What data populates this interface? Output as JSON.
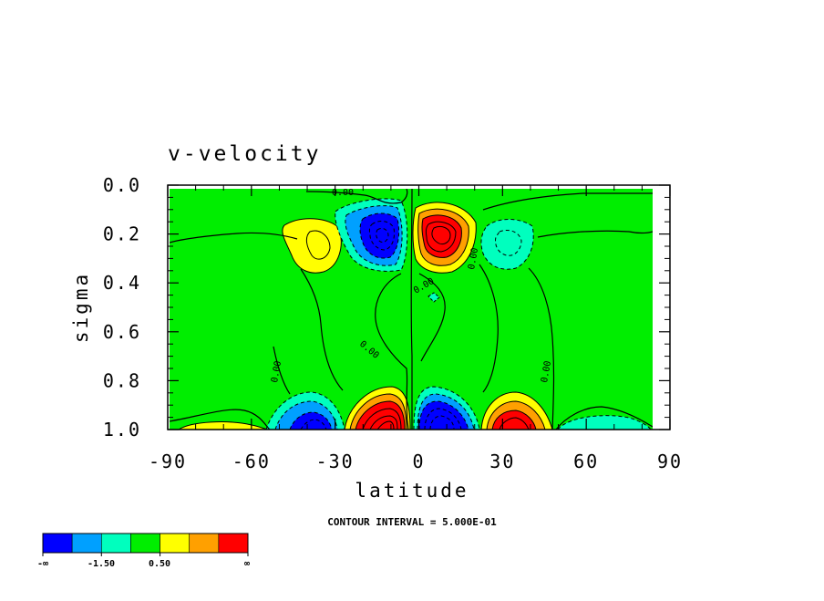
{
  "chart_data": {
    "type": "heatmap",
    "title": "v-velocity",
    "xlabel": "latitude",
    "ylabel": "sigma",
    "xlim": [
      -90,
      90
    ],
    "ylim": [
      0.0,
      1.0
    ],
    "y_inverted": true,
    "x_ticks": [
      "-90",
      "-60",
      "-30",
      "0",
      "30",
      "60",
      "90"
    ],
    "x_tick_values": [
      -90,
      -60,
      -30,
      0,
      30,
      60,
      90
    ],
    "y_ticks": [
      "0.0",
      "0.2",
      "0.4",
      "0.6",
      "0.8",
      "1.0"
    ],
    "y_tick_values": [
      0.0,
      0.2,
      0.4,
      0.6,
      0.8,
      1.0
    ],
    "contour_interval_text": "CONTOUR INTERVAL = 5.000E-01",
    "contour_labels": [
      "0.00",
      "0.00",
      "0.00",
      "0.00",
      "0.00",
      "0.00"
    ],
    "colorbar": {
      "colors": [
        "#0000ff",
        "#00a0ff",
        "#00ffbe",
        "#00ee00",
        "#ffff00",
        "#ffa000",
        "#ff0000"
      ],
      "labels": [
        "-∞",
        "-1.50",
        "0.50",
        "∞"
      ]
    },
    "background_color": "#00ee00",
    "features": [
      {
        "lat": -10,
        "sigma": 0.2,
        "sign": "negative",
        "color": "#0000ff"
      },
      {
        "lat": 10,
        "sigma": 0.2,
        "sign": "positive",
        "color": "#ff0000"
      },
      {
        "lat": -35,
        "sigma": 0.23,
        "sign": "positive",
        "color": "#ffff00"
      },
      {
        "lat": 32,
        "sigma": 0.23,
        "sign": "negative",
        "color": "#00ffbe"
      },
      {
        "lat": -37,
        "sigma": 0.97,
        "sign": "negative",
        "color": "#0000ff"
      },
      {
        "lat": -13,
        "sigma": 0.96,
        "sign": "positive",
        "color": "#ff0000"
      },
      {
        "lat": 12,
        "sigma": 0.96,
        "sign": "negative",
        "color": "#0000ff"
      },
      {
        "lat": 37,
        "sigma": 0.97,
        "sign": "positive",
        "color": "#ff0000"
      },
      {
        "lat": -70,
        "sigma": 0.99,
        "sign": "positive",
        "color": "#ffff00"
      },
      {
        "lat": 70,
        "sigma": 0.99,
        "sign": "negative",
        "color": "#00ffbe"
      }
    ]
  }
}
